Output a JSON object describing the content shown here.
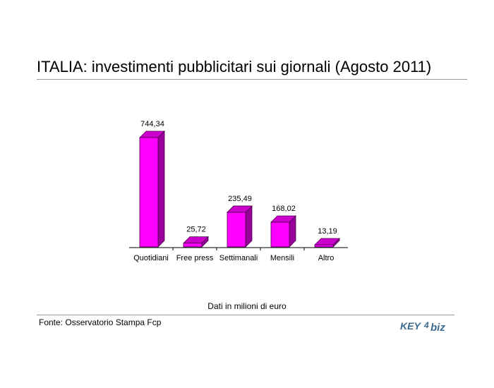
{
  "title": "ITALIA: investimenti pubblicitari sui giornali (Agosto 2011)",
  "chart_data": {
    "type": "bar",
    "categories": [
      "Quotidiani",
      "Free press",
      "Settimanali",
      "Mensili",
      "Altro"
    ],
    "values": [
      744.34,
      25.72,
      235.49,
      168.02,
      13.19
    ],
    "value_labels": [
      "744,34",
      "25,72",
      "235,49",
      "168,02",
      "13,19"
    ],
    "ylim": [
      0,
      744.34
    ],
    "grid": false,
    "legend": "none",
    "colors": {
      "bar_front": "#ff00ff",
      "bar_side": "#990099",
      "bar_top": "#cc00cc",
      "outline": "#4a004a"
    }
  },
  "note": "Dati in milioni di euro",
  "source": "Fonte: Osservatorio Stampa Fcp",
  "logo": {
    "text_left": "KEY",
    "text_right": "biz",
    "glyph": "4",
    "color": "#3d6a8f"
  }
}
